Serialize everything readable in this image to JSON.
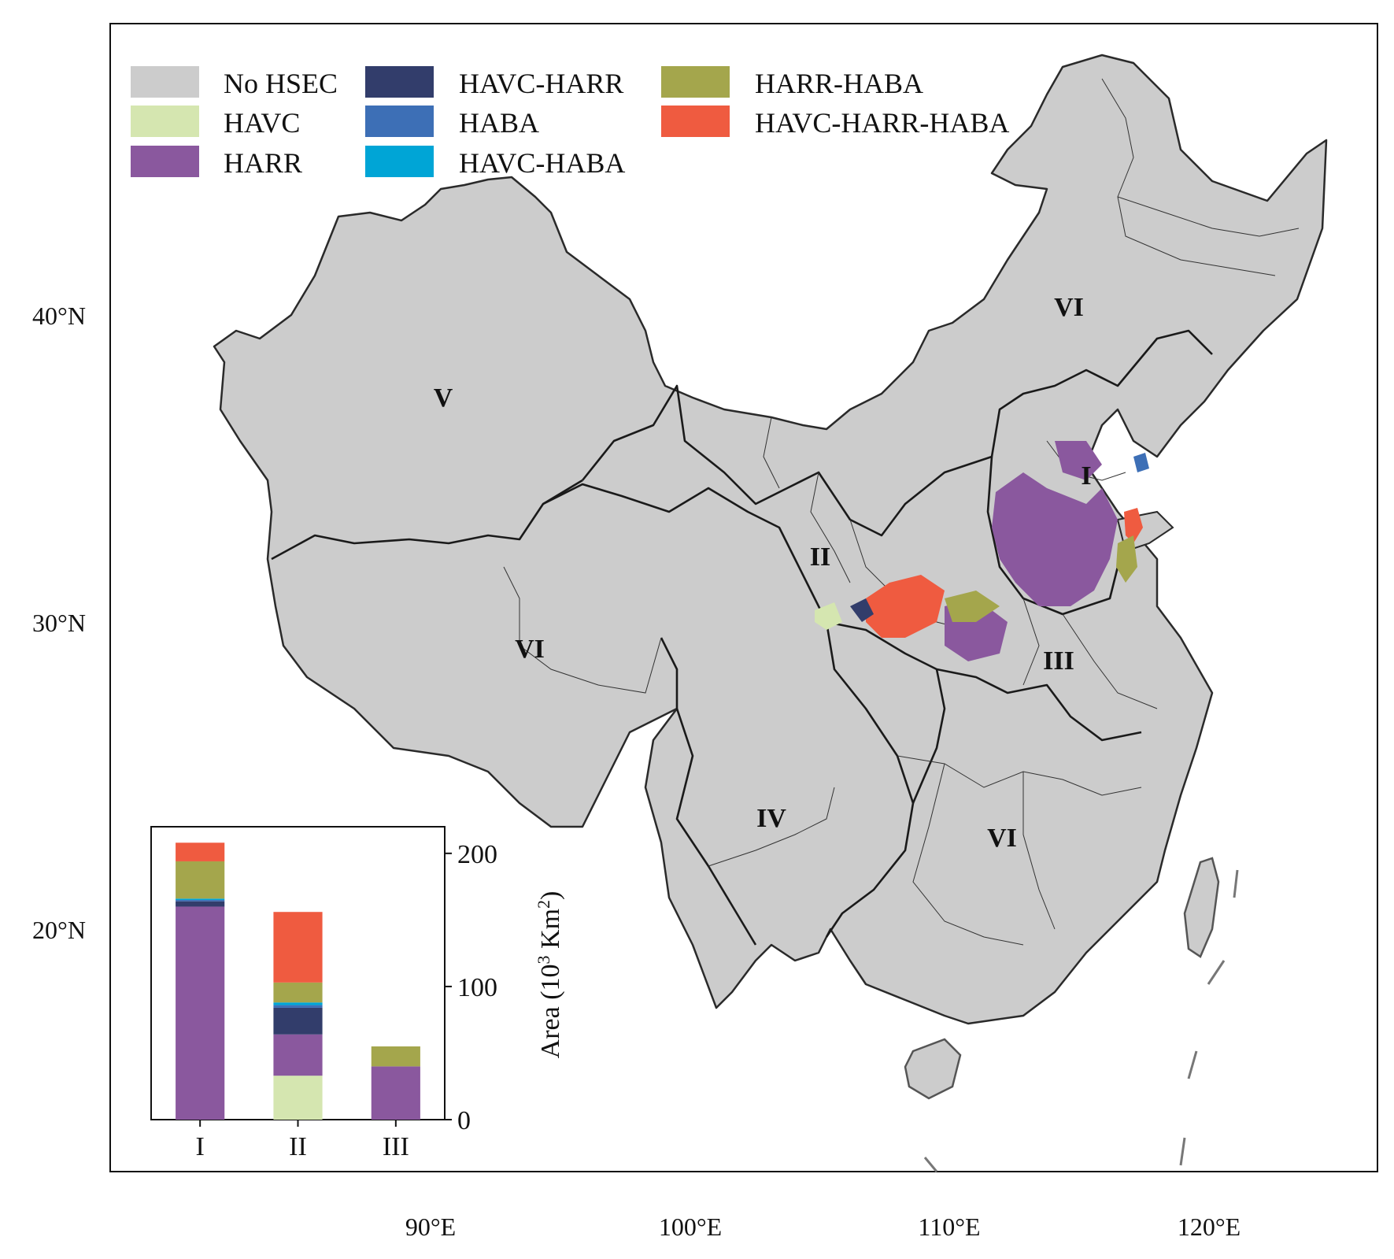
{
  "legend": {
    "items": [
      {
        "label": "No HSEC",
        "color": "#cccccc"
      },
      {
        "label": "HAVC",
        "color": "#d5e6b0"
      },
      {
        "label": "HARR",
        "color": "#8a589e"
      },
      {
        "label": "HAVC-HARR",
        "color": "#323d6b"
      },
      {
        "label": "HABA",
        "color": "#3d6fb6"
      },
      {
        "label": "HAVC-HABA",
        "color": "#00a5d6"
      },
      {
        "label": "HARR-HABA",
        "color": "#a4a64c"
      },
      {
        "label": "HAVC-HARR-HABA",
        "color": "#ef5b40"
      }
    ]
  },
  "map": {
    "lat_labels": [
      "40°N",
      "30°N",
      "20°N"
    ],
    "lon_labels": [
      "90°E",
      "100°E",
      "110°E",
      "120°E"
    ],
    "region_labels": [
      "V",
      "VI",
      "I",
      "II",
      "VI",
      "III",
      "IV",
      "VI"
    ],
    "land_color": "#cccccc",
    "border_color": "#222222"
  },
  "chart_data": {
    "type": "bar",
    "stacked": true,
    "categories": [
      "I",
      "II",
      "III"
    ],
    "ylabel": "Area (10³ Km²)",
    "ylabel_parts": {
      "pre": "Area (10",
      "sup1": "3",
      "mid": " Km",
      "sup2": "2",
      "post": ")"
    },
    "ylim": [
      0,
      220
    ],
    "yticks": [
      0,
      100,
      200
    ],
    "series": [
      {
        "name": "HAVC",
        "color": "#d5e6b0",
        "values": [
          0,
          33,
          0
        ]
      },
      {
        "name": "HARR",
        "color": "#8a589e",
        "values": [
          160,
          31,
          40
        ]
      },
      {
        "name": "HAVC-HARR",
        "color": "#323d6b",
        "values": [
          4,
          20,
          0
        ]
      },
      {
        "name": "HABA",
        "color": "#3d6fb6",
        "values": [
          1,
          2,
          0
        ]
      },
      {
        "name": "HAVC-HABA",
        "color": "#00a5d6",
        "values": [
          1,
          2,
          0
        ]
      },
      {
        "name": "HARR-HABA",
        "color": "#a4a64c",
        "values": [
          28,
          15,
          15
        ]
      },
      {
        "name": "HAVC-HARR-HABA",
        "color": "#ef5b40",
        "values": [
          14,
          53,
          0
        ]
      }
    ]
  }
}
